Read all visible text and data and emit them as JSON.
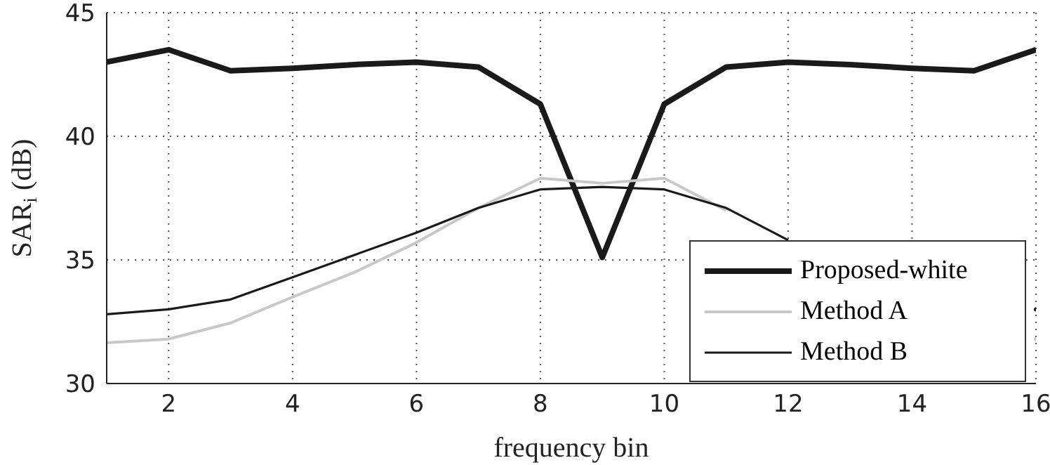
{
  "chart_data": {
    "type": "line",
    "xlabel": "frequency bin",
    "ylabel": "SAR$_{i}$ (dB)",
    "x": [
      1,
      2,
      3,
      4,
      5,
      6,
      7,
      8,
      9,
      10,
      11,
      12,
      13,
      14,
      15,
      16
    ],
    "series": [
      {
        "name": "Proposed-white",
        "color": "#1a1a1a",
        "values": [
          43.0,
          43.5,
          42.65,
          42.75,
          42.9,
          43.0,
          42.8,
          41.3,
          35.1,
          41.3,
          42.8,
          43.0,
          42.9,
          42.75,
          42.65,
          43.5
        ]
      },
      {
        "name": "Method A",
        "color": "#c8c8c8",
        "values": [
          31.65,
          31.8,
          32.45,
          33.5,
          34.5,
          35.7,
          37.1,
          38.3,
          38.1,
          38.3,
          37.0,
          null,
          null,
          null,
          null,
          31.8
        ]
      },
      {
        "name": "Method B",
        "color": "#1a1a1a",
        "values": [
          32.8,
          33.0,
          33.4,
          34.3,
          35.2,
          36.1,
          37.1,
          37.85,
          37.95,
          37.85,
          37.1,
          35.8,
          null,
          null,
          null,
          33.0
        ]
      }
    ],
    "xlim": [
      1,
      16
    ],
    "xticks": [
      2,
      4,
      6,
      8,
      10,
      12,
      14,
      16
    ],
    "ylim": [
      30,
      45
    ],
    "yticks": [
      30,
      35,
      40,
      45
    ],
    "grid": true,
    "legend": "bottom right",
    "line_style": "solid",
    "marker": "none"
  }
}
